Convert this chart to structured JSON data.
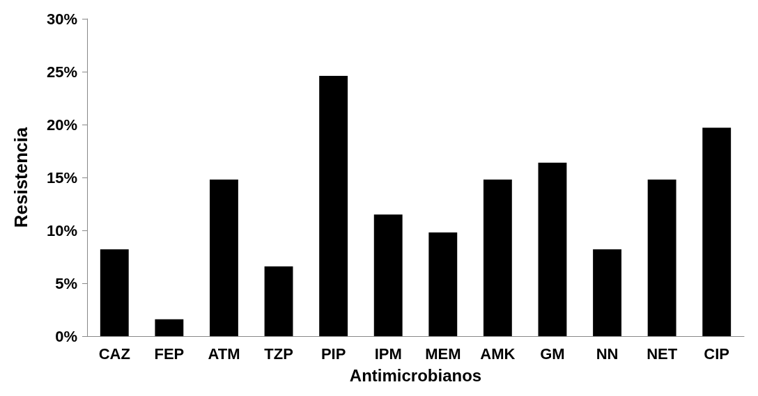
{
  "chart_data": {
    "type": "bar",
    "xlabel": "Antimicrobianos",
    "ylabel": "Resistencia",
    "categories": [
      "CAZ",
      "FEP",
      "ATM",
      "TZP",
      "PIP",
      "IPM",
      "MEM",
      "AMK",
      "GM",
      "NN",
      "NET",
      "CIP"
    ],
    "values": [
      8.2,
      1.6,
      14.8,
      6.6,
      24.6,
      11.5,
      9.8,
      14.8,
      16.4,
      8.2,
      14.8,
      19.7
    ],
    "color": "#000000",
    "ylim": [
      0,
      30
    ],
    "yticks": [
      {
        "value": 0,
        "label": "0%"
      },
      {
        "value": 5,
        "label": "5%"
      },
      {
        "value": 10,
        "label": "10%"
      },
      {
        "value": 15,
        "label": "15%"
      },
      {
        "value": 20,
        "label": "20%"
      },
      {
        "value": 25,
        "label": "25%"
      },
      {
        "value": 30,
        "label": "30%"
      }
    ],
    "grid": false
  }
}
